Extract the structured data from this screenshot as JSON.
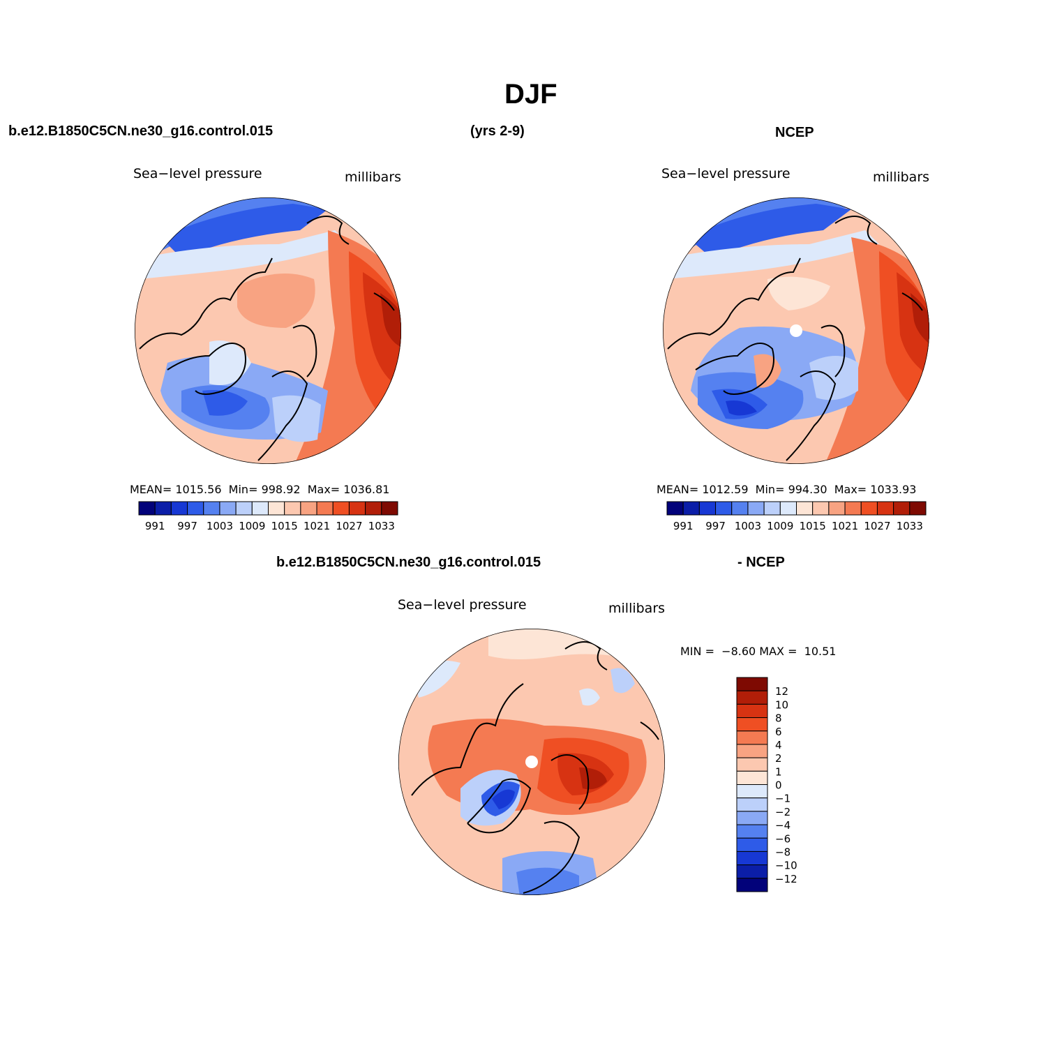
{
  "figure": {
    "title": "DJF",
    "case_name": "b.e12.B1850C5CN.ne30_g16.control.015",
    "years": "(yrs 2-9)",
    "obs_name": "NCEP",
    "diff_case": "b.e12.B1850C5CN.ne30_g16.control.015",
    "diff_obs": "- NCEP"
  },
  "panels": {
    "model": {
      "left_title": "Sea−level pressure",
      "right_title": "millibars",
      "mean_label": "MEAN=",
      "mean_value": "1015.56",
      "min_label": "Min=",
      "min_value": "998.92",
      "max_label": "Max=",
      "max_value": "1036.81"
    },
    "obs": {
      "left_title": "Sea−level pressure",
      "right_title": "millibars",
      "mean_label": "MEAN=",
      "mean_value": "1012.59",
      "min_label": "Min=",
      "min_value": "994.30",
      "max_label": "Max=",
      "max_value": "1033.93"
    },
    "diff": {
      "left_title": "Sea−level pressure",
      "right_title": "millibars",
      "min_label": "MIN =",
      "min_value": "−8.60",
      "max_label": "MAX =",
      "max_value": "10.51"
    }
  },
  "colorbars": {
    "slp_colors": [
      "#02027a",
      "#0b1ea8",
      "#1738d4",
      "#2e5be8",
      "#5581f0",
      "#8aa9f5",
      "#bcd0fa",
      "#dde9fb",
      "#fde5d6",
      "#fcc8b0",
      "#f8a382",
      "#f47a52",
      "#ef4f23",
      "#d73312",
      "#b11e08",
      "#7e0a02"
    ],
    "slp_labels": [
      "991",
      "997",
      "1003",
      "1009",
      "1015",
      "1021",
      "1027",
      "1033"
    ],
    "diff_colors": [
      "#7e0a02",
      "#b11e08",
      "#d73312",
      "#ef4f23",
      "#f47a52",
      "#f8a382",
      "#fcc8b0",
      "#fde5d6",
      "#dde9fb",
      "#bcd0fa",
      "#8aa9f5",
      "#5581f0",
      "#2e5be8",
      "#1738d4",
      "#0b1ea8",
      "#02027a"
    ],
    "diff_labels": [
      "12",
      "10",
      "8",
      "6",
      "4",
      "2",
      "1",
      "0",
      "−1",
      "−2",
      "−4",
      "−6",
      "−8",
      "−10",
      "−12"
    ]
  }
}
